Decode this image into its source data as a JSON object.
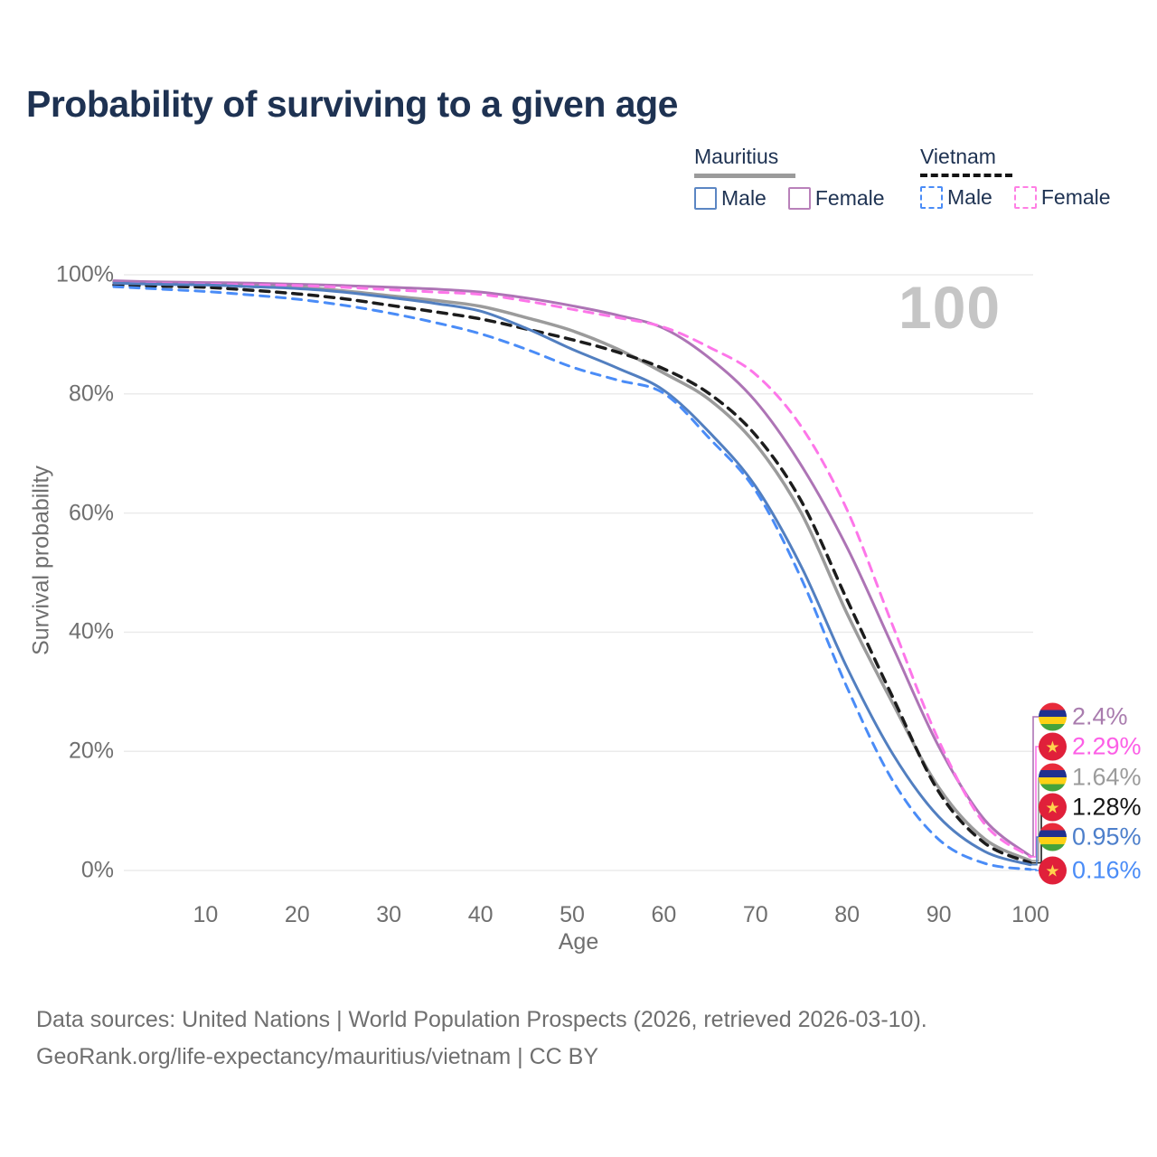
{
  "title": "Probability of surviving to a given age",
  "watermark": "100",
  "legend": {
    "groups": [
      {
        "country": "Mauritius",
        "line_style": "solid",
        "items": [
          {
            "label": "Male",
            "swatch_color": "#5b86c3",
            "swatch_style": "solid"
          },
          {
            "label": "Female",
            "swatch_color": "#b981ba",
            "swatch_style": "solid"
          }
        ]
      },
      {
        "country": "Vietnam",
        "line_style": "dashed",
        "items": [
          {
            "label": "Male",
            "swatch_color": "#4a8cf7",
            "swatch_style": "dashed"
          },
          {
            "label": "Female",
            "swatch_color": "#ff7fe4",
            "swatch_style": "dashed"
          }
        ]
      }
    ]
  },
  "axes": {
    "y": {
      "title": "Survival probability",
      "ticks": [
        "100%",
        "80%",
        "60%",
        "40%",
        "20%",
        "0%"
      ]
    },
    "x": {
      "title": "Age",
      "ticks": [
        "10",
        "20",
        "30",
        "40",
        "50",
        "60",
        "70",
        "80",
        "90",
        "100"
      ]
    }
  },
  "end_labels": [
    {
      "series": "Mauritius Female",
      "flag": "mauritius",
      "value": "2.4%",
      "color": "#a97cae"
    },
    {
      "series": "Vietnam Female",
      "flag": "vietnam",
      "value": "2.29%",
      "color": "#fc5fe6"
    },
    {
      "series": "Mauritius Both sexes",
      "flag": "mauritius",
      "value": "1.64%",
      "color": "#9b9b9b"
    },
    {
      "series": "Vietnam Both sexes",
      "flag": "vietnam",
      "value": "1.28%",
      "color": "#151515"
    },
    {
      "series": "Mauritius Male",
      "flag": "mauritius",
      "value": "0.95%",
      "color": "#4d7fcb"
    },
    {
      "series": "Vietnam Male",
      "flag": "vietnam",
      "value": "0.16%",
      "color": "#4a8cf7"
    }
  ],
  "footer": {
    "line1": "Data sources: United Nations | World Population Prospects (2026, retrieved 2026-03-10).",
    "line2": "GeoRank.org/life-expectancy/mauritius/vietnam | CC BY"
  },
  "colors": {
    "title_text": "#1e3252",
    "axis_text": "#6f6f6f",
    "gridline": "#ebebeb",
    "watermark": "#c5c5c5",
    "mauritius_male": "#527fc0",
    "mauritius_female": "#ad74b5",
    "mauritius_both": "#9b9b9b",
    "vietnam_male": "#4a8cf7",
    "vietnam_female": "#fd76e9",
    "vietnam_both": "#1c1c1c"
  },
  "chart_data": {
    "type": "line",
    "title": "Probability of surviving to a given age",
    "xlabel": "Age",
    "ylabel": "Survival probability",
    "xlim": [
      0,
      100
    ],
    "ylim": [
      0,
      100
    ],
    "grid": "horizontal",
    "legend_position": "top-right",
    "x": [
      0,
      5,
      10,
      15,
      20,
      25,
      30,
      35,
      40,
      45,
      50,
      55,
      60,
      65,
      70,
      75,
      80,
      85,
      90,
      95,
      100
    ],
    "series": [
      {
        "name": "Mauritius Both sexes",
        "country": "Mauritius",
        "sex": "both",
        "style": "solid",
        "color": "#9b9b9b",
        "width": 3.5,
        "end_value_pct": 1.64,
        "values": [
          98.8,
          98.6,
          98.5,
          98.3,
          98.0,
          97.3,
          96.5,
          95.7,
          94.7,
          92.8,
          90.6,
          87.5,
          83.5,
          79.0,
          71.6,
          60.0,
          43.1,
          28.0,
          13.9,
          5.3,
          1.64
        ]
      },
      {
        "name": "Vietnam Both sexes",
        "country": "Vietnam",
        "sex": "both",
        "style": "dashed",
        "color": "#1c1c1c",
        "width": 3.5,
        "end_value_pct": 1.28,
        "values": [
          98.3,
          98.1,
          97.9,
          97.4,
          96.8,
          96.0,
          94.9,
          93.8,
          92.6,
          90.9,
          89.1,
          87.0,
          84.2,
          80.0,
          73.1,
          62.0,
          45.4,
          29.0,
          13.2,
          4.6,
          1.28
        ]
      },
      {
        "name": "Mauritius Female",
        "country": "Mauritius",
        "sex": "female",
        "style": "solid",
        "color": "#ad74b5",
        "width": 3,
        "end_value_pct": 2.4,
        "values": [
          99.0,
          98.8,
          98.7,
          98.6,
          98.4,
          98.2,
          97.9,
          97.6,
          97.1,
          96.1,
          94.8,
          93.2,
          91.0,
          86.0,
          78.8,
          68.0,
          54.2,
          37.5,
          20.8,
          8.5,
          2.4
        ]
      },
      {
        "name": "Vietnam Female",
        "country": "Vietnam",
        "sex": "female",
        "style": "dashed",
        "color": "#fd76e9",
        "width": 3,
        "end_value_pct": 2.29,
        "values": [
          98.6,
          98.5,
          98.4,
          98.3,
          98.2,
          97.9,
          97.5,
          97.1,
          96.7,
          95.6,
          94.2,
          92.8,
          91.2,
          87.8,
          83.3,
          74.5,
          60.5,
          41.0,
          21.8,
          7.8,
          2.29
        ]
      },
      {
        "name": "Mauritius Male",
        "country": "Mauritius",
        "sex": "male",
        "style": "solid",
        "color": "#527fc0",
        "width": 3,
        "end_value_pct": 0.95,
        "values": [
          98.6,
          98.4,
          98.3,
          98.0,
          97.7,
          97.1,
          96.2,
          95.2,
          93.9,
          91.0,
          87.5,
          84.3,
          80.6,
          73.5,
          64.5,
          51.0,
          34.0,
          19.5,
          9.0,
          3.2,
          0.95
        ]
      },
      {
        "name": "Vietnam Male",
        "country": "Vietnam",
        "sex": "male",
        "style": "dashed",
        "color": "#4a8cf7",
        "width": 3,
        "end_value_pct": 0.16,
        "values": [
          98.0,
          97.6,
          97.2,
          96.6,
          95.9,
          94.9,
          93.6,
          92.0,
          90.1,
          87.5,
          84.5,
          82.3,
          80.1,
          72.5,
          63.8,
          49.0,
          30.7,
          15.0,
          5.2,
          1.2,
          0.16
        ]
      }
    ]
  }
}
